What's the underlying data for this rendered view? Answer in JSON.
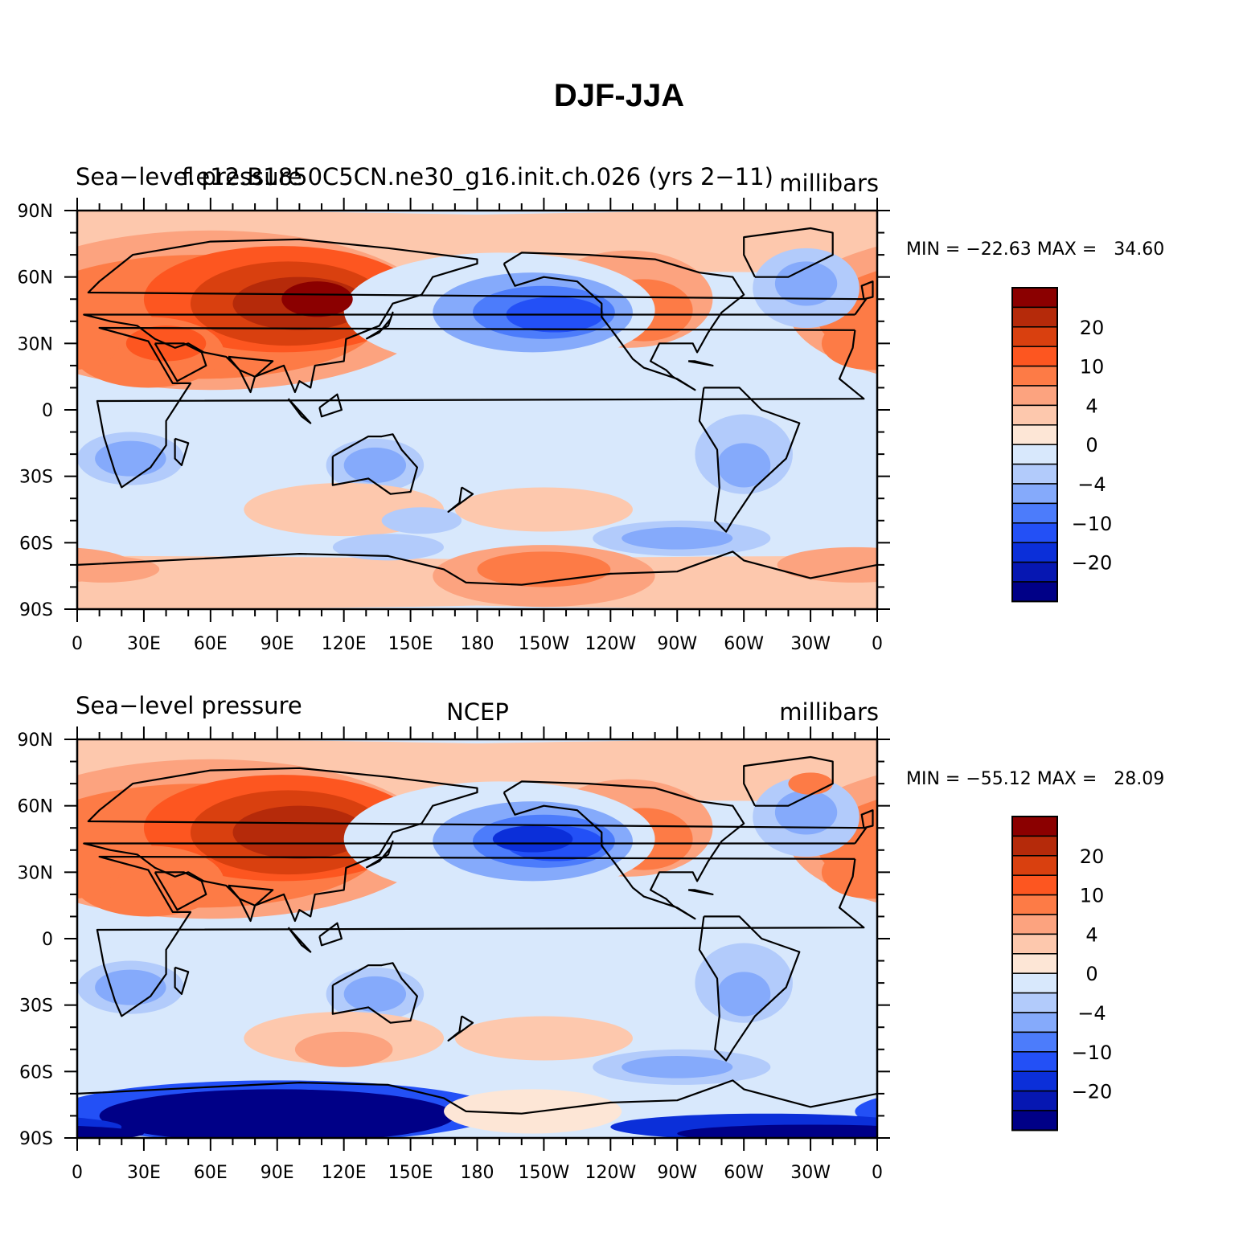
{
  "title": "DJF-JJA",
  "colors": {
    "levels": [
      "#8b0000",
      "#b52a0a",
      "#d9400f",
      "#fd5620",
      "#fd7b46",
      "#fca37f",
      "#fdc8ad",
      "#fde6d6",
      "#d8e8fc",
      "#b2cbfb",
      "#85aafb",
      "#4c7cfb",
      "#2350f6",
      "#0b2fd9",
      "#0617b2",
      "#000087"
    ],
    "land_outline": "#000000"
  },
  "colorbar": {
    "labels": [
      "20",
      "10",
      "4",
      "0",
      "−4",
      "−10",
      "−20"
    ]
  },
  "axes": {
    "lat_labels": [
      "90N",
      "60N",
      "30N",
      "0",
      "30S",
      "60S",
      "90S"
    ],
    "lon_labels": [
      "0",
      "30E",
      "60E",
      "90E",
      "120E",
      "150E",
      "180",
      "150W",
      "120W",
      "90W",
      "60W",
      "30W",
      "0"
    ]
  },
  "panels": [
    {
      "left_title": "Sea−level pressure",
      "center_title": "f.e12.B1850C5CN.ne30_g16.init.ch.026 (yrs 2−11)",
      "right_title": "millibars",
      "minmax": "MIN = −22.63 MAX =   34.60",
      "min": -22.63,
      "max": 34.6
    },
    {
      "left_title": "Sea−level pressure",
      "center_title": "NCEP",
      "right_title": "millibars",
      "minmax": "MIN = −55.12 MAX =   28.09",
      "min": -55.12,
      "max": 28.09
    }
  ]
}
